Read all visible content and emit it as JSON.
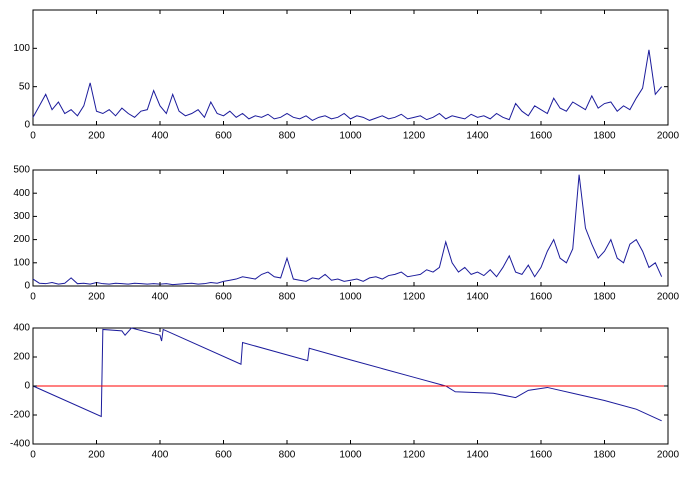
{
  "chart_data": [
    {
      "type": "line",
      "xlim": [
        0,
        2000
      ],
      "xticks": [
        0,
        200,
        400,
        600,
        800,
        1000,
        1200,
        1400,
        1600,
        1800,
        2000
      ],
      "ylim": [
        0,
        150
      ],
      "yticks": [
        0,
        50,
        100
      ],
      "series": [
        {
          "color": "#1c1c9c",
          "x": [
            0,
            20,
            40,
            60,
            80,
            100,
            120,
            140,
            160,
            180,
            200,
            220,
            240,
            260,
            280,
            300,
            320,
            340,
            360,
            380,
            400,
            420,
            440,
            460,
            480,
            500,
            520,
            540,
            560,
            580,
            600,
            620,
            640,
            660,
            680,
            700,
            720,
            740,
            760,
            780,
            800,
            820,
            840,
            860,
            880,
            900,
            920,
            940,
            960,
            980,
            1000,
            1020,
            1040,
            1060,
            1080,
            1100,
            1120,
            1140,
            1160,
            1180,
            1200,
            1220,
            1240,
            1260,
            1280,
            1300,
            1320,
            1340,
            1360,
            1380,
            1400,
            1420,
            1440,
            1460,
            1480,
            1500,
            1520,
            1540,
            1560,
            1580,
            1600,
            1620,
            1640,
            1660,
            1680,
            1700,
            1720,
            1740,
            1760,
            1780,
            1800,
            1820,
            1840,
            1860,
            1880,
            1900,
            1920,
            1940,
            1960,
            1980
          ],
          "values": [
            10,
            25,
            40,
            20,
            30,
            15,
            20,
            12,
            25,
            55,
            18,
            15,
            20,
            12,
            22,
            15,
            10,
            18,
            20,
            45,
            25,
            15,
            40,
            18,
            12,
            15,
            20,
            10,
            30,
            15,
            12,
            18,
            10,
            15,
            8,
            12,
            10,
            14,
            8,
            10,
            15,
            10,
            8,
            12,
            6,
            10,
            12,
            8,
            10,
            15,
            8,
            12,
            10,
            6,
            9,
            12,
            8,
            10,
            14,
            8,
            10,
            12,
            7,
            10,
            15,
            8,
            12,
            10,
            8,
            14,
            10,
            12,
            8,
            15,
            10,
            7,
            28,
            18,
            12,
            25,
            20,
            15,
            35,
            22,
            18,
            30,
            25,
            20,
            38,
            22,
            28,
            30,
            18,
            25,
            20,
            35,
            48,
            98,
            40,
            50
          ]
        }
      ]
    },
    {
      "type": "line",
      "xlim": [
        0,
        2000
      ],
      "xticks": [
        0,
        200,
        400,
        600,
        800,
        1000,
        1200,
        1400,
        1600,
        1800,
        2000
      ],
      "ylim": [
        0,
        500
      ],
      "yticks": [
        0,
        100,
        200,
        300,
        400,
        500
      ],
      "series": [
        {
          "color": "#1c1c9c",
          "x": [
            0,
            20,
            40,
            60,
            80,
            100,
            120,
            140,
            160,
            180,
            200,
            220,
            240,
            260,
            280,
            300,
            320,
            340,
            360,
            380,
            400,
            420,
            440,
            460,
            480,
            500,
            520,
            540,
            560,
            580,
            600,
            620,
            640,
            660,
            680,
            700,
            720,
            740,
            760,
            780,
            800,
            820,
            840,
            860,
            880,
            900,
            920,
            940,
            960,
            980,
            1000,
            1020,
            1040,
            1060,
            1080,
            1100,
            1120,
            1140,
            1160,
            1180,
            1200,
            1220,
            1240,
            1260,
            1280,
            1300,
            1320,
            1340,
            1360,
            1380,
            1400,
            1420,
            1440,
            1460,
            1480,
            1500,
            1520,
            1540,
            1560,
            1580,
            1600,
            1620,
            1640,
            1660,
            1680,
            1700,
            1720,
            1740,
            1760,
            1780,
            1800,
            1820,
            1840,
            1860,
            1880,
            1900,
            1920,
            1940,
            1960,
            1980
          ],
          "values": [
            30,
            12,
            10,
            15,
            8,
            12,
            35,
            10,
            12,
            8,
            15,
            10,
            8,
            12,
            10,
            8,
            12,
            10,
            8,
            10,
            8,
            10,
            6,
            8,
            10,
            12,
            8,
            10,
            15,
            12,
            20,
            25,
            30,
            40,
            35,
            30,
            50,
            60,
            40,
            35,
            120,
            30,
            25,
            20,
            35,
            30,
            50,
            25,
            30,
            20,
            25,
            30,
            20,
            35,
            40,
            30,
            45,
            50,
            60,
            40,
            45,
            50,
            70,
            60,
            80,
            190,
            100,
            60,
            80,
            50,
            60,
            45,
            70,
            40,
            80,
            130,
            60,
            50,
            90,
            40,
            80,
            150,
            200,
            120,
            100,
            160,
            480,
            250,
            180,
            120,
            150,
            200,
            120,
            100,
            180,
            200,
            150,
            80,
            100,
            40
          ]
        }
      ]
    },
    {
      "type": "line",
      "xlim": [
        0,
        2000
      ],
      "xticks": [
        0,
        200,
        400,
        600,
        800,
        1000,
        1200,
        1400,
        1600,
        1800,
        2000
      ],
      "ylim": [
        -400,
        400
      ],
      "yticks": [
        -400,
        -200,
        0,
        200,
        400
      ],
      "series": [
        {
          "color": "#1c1c9c",
          "x": [
            0,
            215,
            220,
            280,
            290,
            310,
            400,
            405,
            410,
            655,
            660,
            865,
            870,
            1000,
            1100,
            1200,
            1300,
            1330,
            1450,
            1520,
            1560,
            1620,
            1700,
            1800,
            1900,
            1980
          ],
          "values": [
            0,
            -210,
            390,
            380,
            350,
            400,
            350,
            310,
            390,
            150,
            300,
            175,
            260,
            180,
            120,
            60,
            0,
            -40,
            -50,
            -80,
            -30,
            -10,
            -50,
            -100,
            -160,
            -240
          ]
        },
        {
          "color": "#ff0000",
          "x": [
            0,
            2000
          ],
          "values": [
            0,
            0
          ]
        }
      ]
    }
  ]
}
